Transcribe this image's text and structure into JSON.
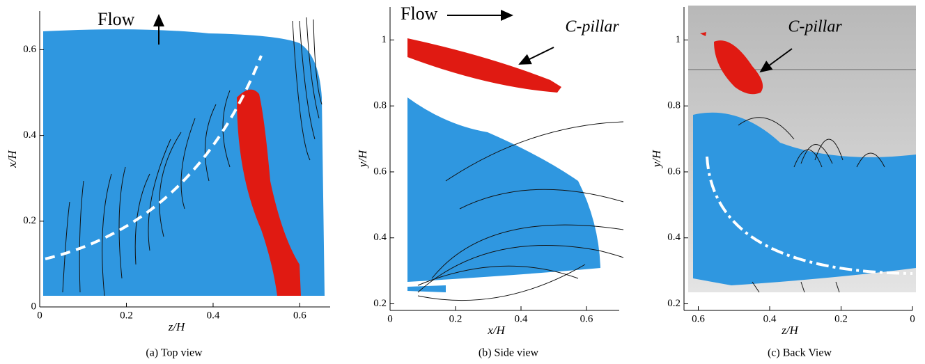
{
  "panels": [
    {
      "caption": "(a) Top view",
      "xlabel": "z/H",
      "ylabel": "x/H",
      "flow_label": "Flow",
      "xlim": [
        0,
        0.67
      ],
      "ylim": [
        0,
        0.69
      ],
      "xticks": [
        0,
        0.2,
        0.4,
        0.6
      ],
      "yticks": [
        0,
        0.2,
        0.4,
        0.6
      ]
    },
    {
      "caption": "(b) Side view",
      "xlabel": "x/H",
      "ylabel": "y/H",
      "flow_label": "Flow",
      "callout": "C-pillar",
      "xlim": [
        0,
        0.7
      ],
      "ylim": [
        0.18,
        1.1
      ],
      "xticks": [
        0,
        0.2,
        0.4,
        0.6
      ],
      "yticks": [
        0.2,
        0.4,
        0.6,
        0.8,
        1
      ]
    },
    {
      "caption": "(c) Back View",
      "xlabel": "z/H",
      "ylabel": "y/H",
      "callout": "C-pillar",
      "xlim": [
        0.64,
        0
      ],
      "ylim": [
        0.18,
        1.1
      ],
      "xticks": [
        0.6,
        0.4,
        0.2,
        0
      ],
      "yticks": [
        0.2,
        0.4,
        0.6,
        0.8,
        1
      ]
    }
  ]
}
